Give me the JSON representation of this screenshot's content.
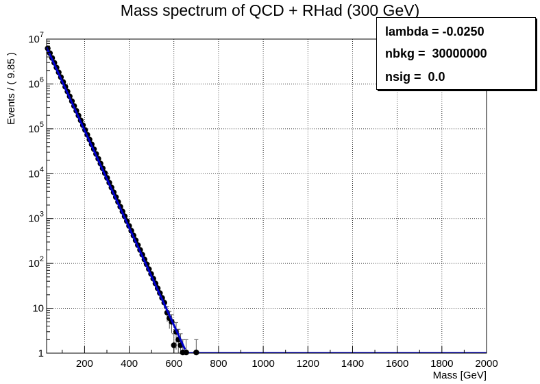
{
  "chart_data": {
    "type": "scatter",
    "title": "Mass spectrum of QCD + RHad (300 GeV)",
    "xlabel": "Mass [GeV]",
    "ylabel": "Events / ( 9.85 )",
    "xlim": [
      30,
      2000
    ],
    "ylim": [
      1,
      10000000
    ],
    "yscale": "log",
    "grid": true,
    "x_ticks": [
      200,
      400,
      600,
      800,
      1000,
      1200,
      1400,
      1600,
      1800,
      2000
    ],
    "x_tick_labels": [
      "200",
      "400",
      "600",
      "800",
      "1000",
      "1200",
      "1400",
      "1600",
      "1800",
      "2000"
    ],
    "y_ticks": [
      1,
      10,
      100,
      1000,
      10000,
      100000,
      1000000,
      10000000
    ],
    "y_tick_labels": [
      {
        "base": "1",
        "exp": ""
      },
      {
        "base": "10",
        "exp": ""
      },
      {
        "base": "10",
        "exp": "2"
      },
      {
        "base": "10",
        "exp": "3"
      },
      {
        "base": "10",
        "exp": "4"
      },
      {
        "base": "10",
        "exp": "5"
      },
      {
        "base": "10",
        "exp": "6"
      },
      {
        "base": "10",
        "exp": "7"
      }
    ],
    "stats": [
      {
        "label": "lambda = -0.0250"
      },
      {
        "label": "nbkg =  30000000"
      },
      {
        "label": "nsig =  0.0"
      }
    ],
    "fit_curve": {
      "lambda": -0.025,
      "x_start": 30,
      "x_end": 650,
      "y_at_start": 6500000,
      "color": "#0000cc"
    },
    "data_points": {
      "x_start": 35,
      "x_end": 560,
      "bin_width": 9.85,
      "y_at_start": 6200000,
      "lambda": -0.025,
      "tail": [
        {
          "x": 570,
          "y": 8,
          "err": 3
        },
        {
          "x": 580,
          "y": 6,
          "err": 2.5
        },
        {
          "x": 590,
          "y": 5,
          "err": 2.2
        },
        {
          "x": 600,
          "y": 1.5,
          "err": 1.2
        },
        {
          "x": 610,
          "y": 3,
          "err": 1.8
        },
        {
          "x": 620,
          "y": 2,
          "err": 1.4
        },
        {
          "x": 630,
          "y": 1.5,
          "err": 1.2
        },
        {
          "x": 640,
          "y": 1,
          "err": 1
        },
        {
          "x": 655,
          "y": 1,
          "err": 1
        },
        {
          "x": 700,
          "y": 1,
          "err": 1
        }
      ],
      "color": "#000000"
    }
  }
}
